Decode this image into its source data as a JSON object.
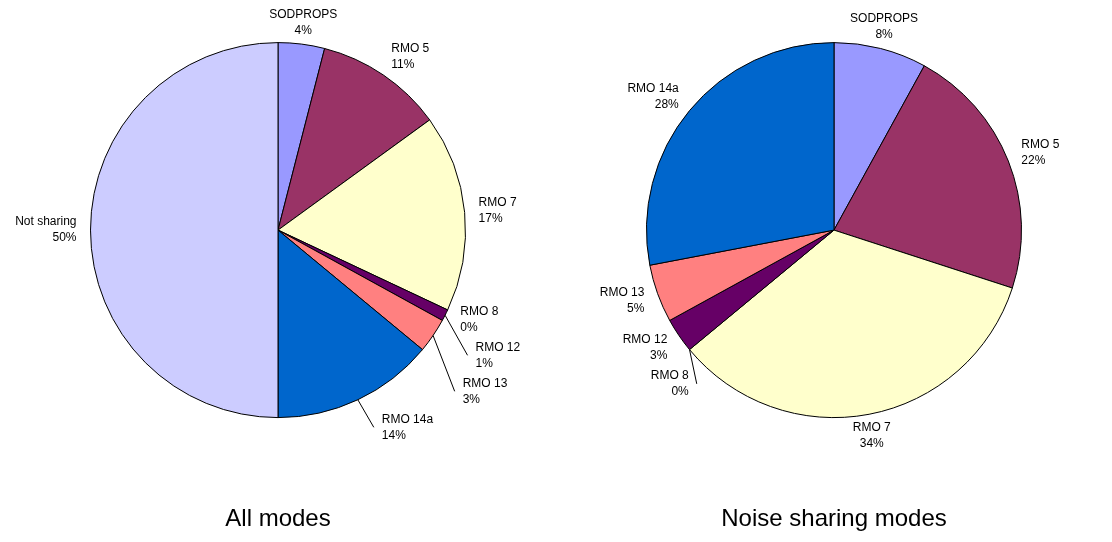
{
  "chart_data": [
    {
      "type": "pie",
      "title": "All modes",
      "categories": [
        "SODPROPS",
        "RMO 5",
        "RMO 7",
        "RMO 8",
        "RMO 12",
        "RMO 13",
        "RMO 14a",
        "Not sharing"
      ],
      "values": [
        4,
        11,
        17,
        0,
        1,
        3,
        14,
        50
      ],
      "value_labels": [
        "4%",
        "11%",
        "17%",
        "0%",
        "1%",
        "3%",
        "14%",
        "50%"
      ],
      "colors": [
        "#9999ff",
        "#993366",
        "#ffffcc",
        "#ccffff",
        "#660066",
        "#ff8080",
        "#0066cc",
        "#ccccff"
      ],
      "legend": false
    },
    {
      "type": "pie",
      "title": "Noise sharing modes",
      "categories": [
        "SODPROPS",
        "RMO 5",
        "RMO 7",
        "RMO 8",
        "RMO 12",
        "RMO 13",
        "RMO 14a"
      ],
      "values": [
        8,
        22,
        34,
        0,
        3,
        5,
        28
      ],
      "value_labels": [
        "8%",
        "22%",
        "34%",
        "0%",
        "3%",
        "5%",
        "28%"
      ],
      "colors": [
        "#9999ff",
        "#993366",
        "#ffffcc",
        "#ccffff",
        "#660066",
        "#ff8080",
        "#0066cc"
      ],
      "legend": false
    }
  ]
}
